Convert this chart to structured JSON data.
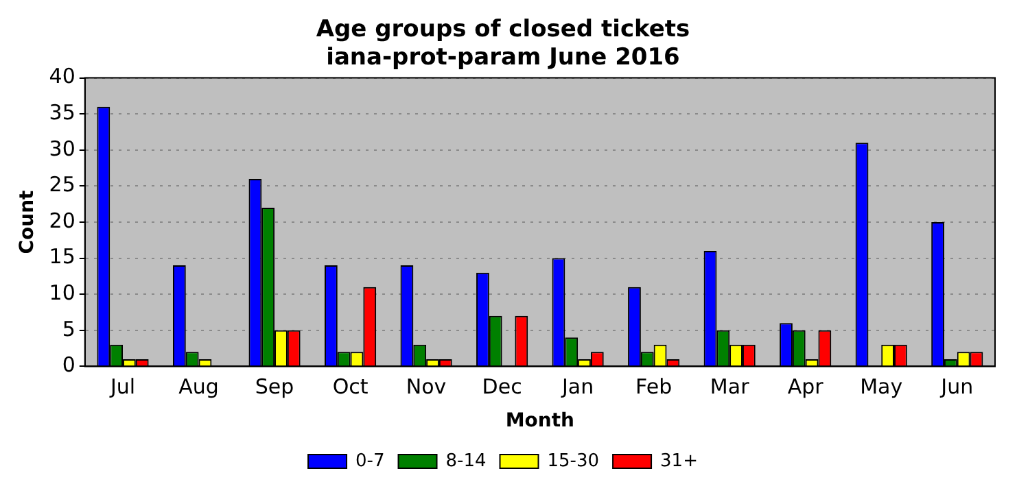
{
  "chart_data": {
    "type": "bar",
    "title": "Age groups of closed tickets",
    "subtitle": "iana-prot-param June 2016",
    "xlabel": "Month",
    "ylabel": "Count",
    "categories": [
      "Jul",
      "Aug",
      "Sep",
      "Oct",
      "Nov",
      "Dec",
      "Jan",
      "Feb",
      "Mar",
      "Apr",
      "May",
      "Jun"
    ],
    "series": [
      {
        "name": "0-7",
        "color": "#0000ff",
        "values": [
          36,
          14,
          26,
          14,
          14,
          13,
          15,
          11,
          16,
          6,
          31,
          20
        ]
      },
      {
        "name": "8-14",
        "color": "#008000",
        "values": [
          3,
          2,
          22,
          2,
          3,
          7,
          4,
          2,
          5,
          5,
          0,
          1
        ]
      },
      {
        "name": "15-30",
        "color": "#ffff00",
        "values": [
          1,
          1,
          5,
          2,
          1,
          0,
          1,
          3,
          3,
          1,
          3,
          2
        ]
      },
      {
        "name": "31+",
        "color": "#ff0000",
        "values": [
          1,
          0,
          5,
          11,
          1,
          7,
          2,
          1,
          3,
          5,
          3,
          2
        ]
      }
    ],
    "ylim": [
      0,
      40
    ],
    "yticks": [
      0,
      5,
      10,
      15,
      20,
      25,
      30,
      35,
      40
    ],
    "grid": "y",
    "legend": "bottom"
  }
}
